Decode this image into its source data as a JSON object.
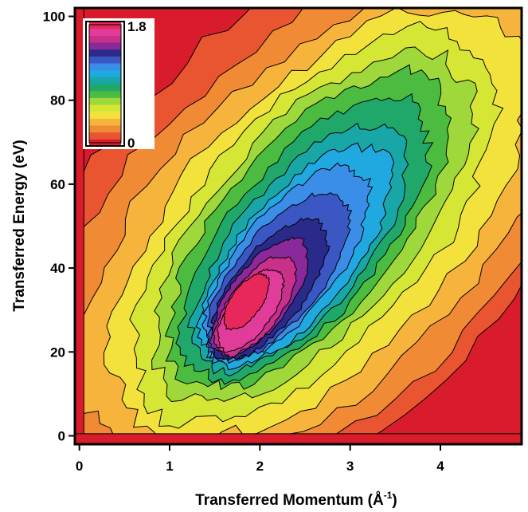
{
  "chart_data": {
    "type": "heatmap",
    "xlabel": "Transferred Momentum (Å",
    "xlabel_sup": "-1",
    "xlabel_close": ")",
    "ylabel": "Transferred Energy (eV)",
    "xlim": [
      -0.05,
      4.9
    ],
    "ylim": [
      -2,
      102
    ],
    "x_ticks": [
      0,
      1,
      2,
      3,
      4
    ],
    "y_ticks": [
      0,
      20,
      40,
      60,
      80,
      100
    ],
    "x_tick_labels": [
      "0",
      "1",
      "2",
      "3",
      "4"
    ],
    "y_tick_labels": [
      "0",
      "20",
      "40",
      "60",
      "80",
      "100"
    ],
    "colorbar": {
      "min": 0,
      "max": 1.8,
      "min_label": "0",
      "max_label": "1.8",
      "placement": "top-left",
      "colors": [
        "#d91c2c",
        "#e95530",
        "#f08a35",
        "#f6b43c",
        "#f3e23c",
        "#d6e634",
        "#9fd83a",
        "#4cbc40",
        "#1fa86a",
        "#19a6a6",
        "#20a8e0",
        "#3b8ee8",
        "#3a57c4",
        "#2a2a8a",
        "#8a2a9a",
        "#c8308a",
        "#e23c9a",
        "#e8285a"
      ]
    },
    "peaks": [
      {
        "x": 1.85,
        "y": 33,
        "value": 1.8
      },
      {
        "x": 1.7,
        "y": 22,
        "value": 1.75
      }
    ],
    "grid": false
  }
}
